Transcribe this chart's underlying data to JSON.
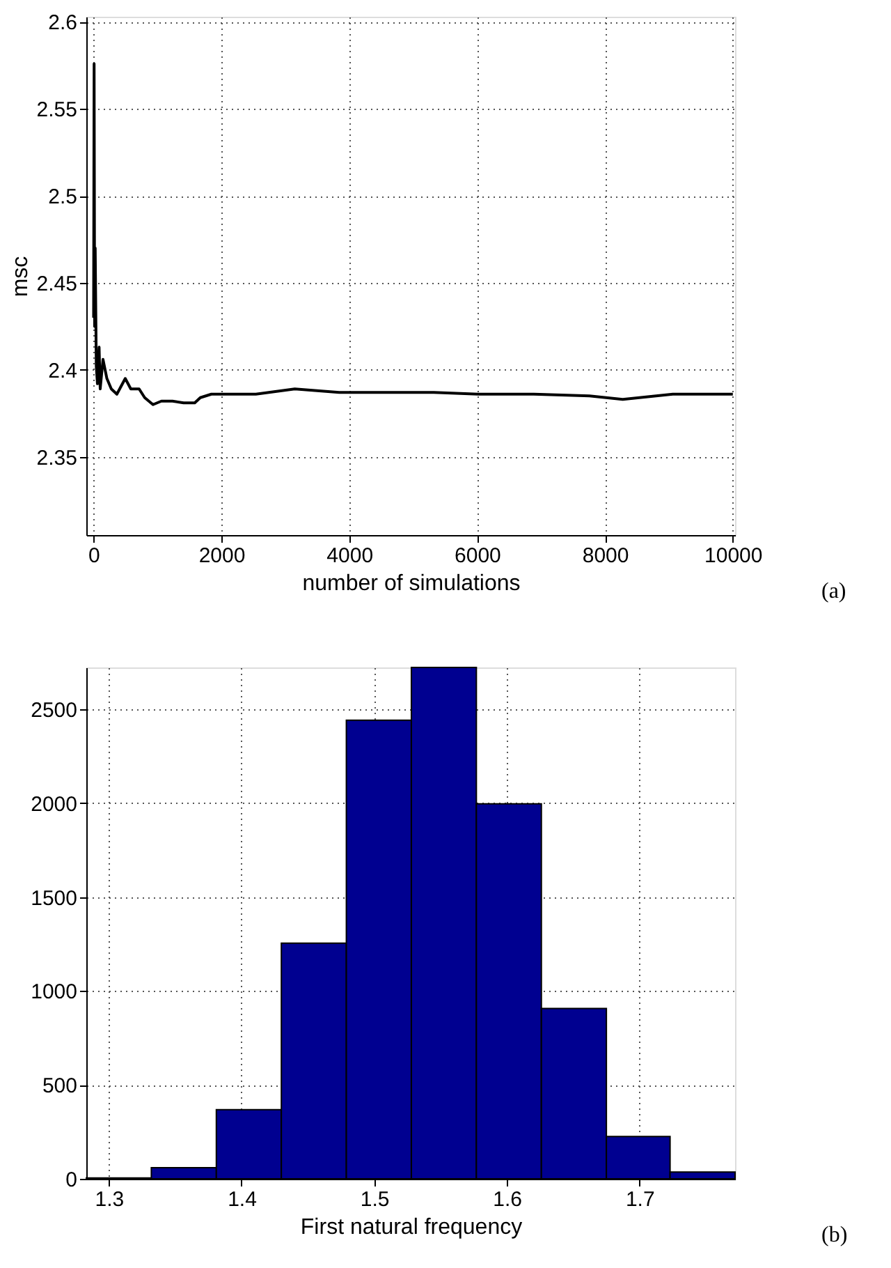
{
  "chart_data": [
    {
      "type": "line",
      "xlabel": "number of simulations",
      "ylabel": "msc",
      "annotations": [
        "(a)"
      ],
      "x": [
        1,
        9,
        17,
        26,
        43,
        61,
        87,
        104,
        148,
        209,
        278,
        365,
        496,
        583,
        713,
        800,
        930,
        1061,
        1235,
        1409,
        1583,
        1670,
        1843,
        2539,
        3148,
        3843,
        4713,
        5322,
        6017,
        6887,
        7757,
        8278,
        9061,
        10000
      ],
      "series": [
        {
          "color": "#000000",
          "values": [
            2.43,
            2.576,
            2.425,
            2.47,
            2.402,
            2.392,
            2.413,
            2.389,
            2.406,
            2.395,
            2.389,
            2.386,
            2.395,
            2.389,
            2.389,
            2.384,
            2.38,
            2.382,
            2.382,
            2.381,
            2.381,
            2.384,
            2.386,
            2.386,
            2.389,
            2.387,
            2.387,
            2.387,
            2.386,
            2.386,
            2.385,
            2.383,
            2.386,
            2.386
          ]
        }
      ],
      "xlim": [
        -113,
        10035
      ],
      "ylim": [
        2.305,
        2.603
      ],
      "xticks": [
        0,
        2000,
        4000,
        6000,
        8000,
        10000
      ],
      "yticks": [
        2.35,
        2.4,
        2.45,
        2.5,
        2.55,
        2.6
      ],
      "grid": true,
      "line_style": "solid"
    },
    {
      "type": "histogram",
      "xlabel": "First natural frequency",
      "annotations": [
        "(b)"
      ],
      "bins": [
        1.283,
        1.332,
        1.381,
        1.43,
        1.479,
        1.528,
        1.577,
        1.626,
        1.675,
        1.723,
        1.772
      ],
      "values": [
        5,
        59,
        368,
        1254,
        2441,
        2722,
        1996,
        907,
        225,
        36
      ],
      "color": "#000090",
      "xlim": [
        1.283,
        1.772
      ],
      "ylim": [
        0,
        2722
      ],
      "xticks": [
        1.3,
        1.4,
        1.5,
        1.6,
        1.7
      ],
      "yticks": [
        0,
        500,
        1000,
        1500,
        2000,
        2500
      ],
      "grid": true
    }
  ]
}
